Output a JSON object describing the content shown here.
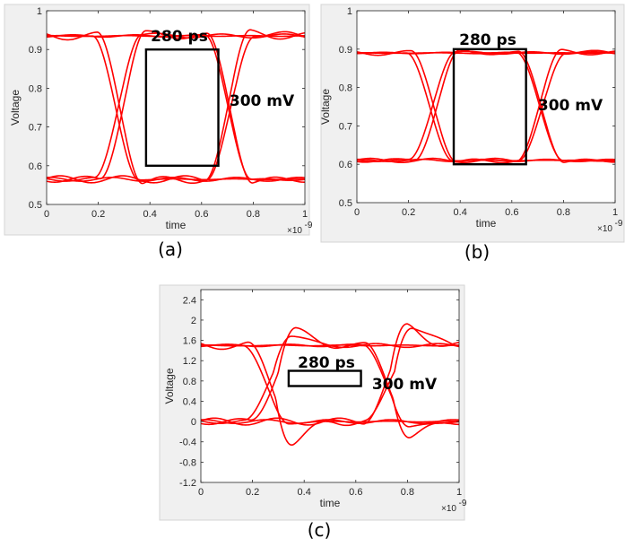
{
  "chart_data": [
    {
      "type": "line",
      "panel_label": "(a)",
      "xlabel": "time",
      "ylabel": "Voltage",
      "x_exponent": "×10",
      "x_exponent_power": "-9",
      "xlim": [
        0,
        1
      ],
      "ylim": [
        0.5,
        1.0
      ],
      "xticks": [
        0,
        0.2,
        0.4,
        0.6,
        0.8,
        1
      ],
      "xtick_labels": [
        "0",
        "0.2",
        "0.4",
        "0.6",
        "0.8",
        "1"
      ],
      "yticks": [
        0.5,
        0.6,
        0.7,
        0.8,
        0.9,
        1.0
      ],
      "ytick_labels": [
        "0.5",
        "0.6",
        "0.7",
        "0.8",
        "0.9",
        "1"
      ],
      "eye": {
        "high": 0.935,
        "low": 0.565,
        "crossings": [
          0.285,
          0.715
        ],
        "ripple": 0.02,
        "overshoot": 0.02
      },
      "color": "#ff0000",
      "eye_box": {
        "x0": 0.385,
        "x1": 0.665,
        "y0": 0.6,
        "y1": 0.9
      },
      "width_label": "280 ps",
      "height_label": "300 mV"
    },
    {
      "type": "line",
      "panel_label": "(b)",
      "xlabel": "time",
      "ylabel": "Voltage",
      "x_exponent": "×10",
      "x_exponent_power": "-9",
      "xlim": [
        0,
        1
      ],
      "ylim": [
        0.5,
        1.0
      ],
      "xticks": [
        0,
        0.2,
        0.4,
        0.6,
        0.8,
        1
      ],
      "xtick_labels": [
        "0",
        "0.2",
        "0.4",
        "0.6",
        "0.8",
        "1"
      ],
      "yticks": [
        0.5,
        0.6,
        0.7,
        0.8,
        0.9,
        1.0
      ],
      "ytick_labels": [
        "0.5",
        "0.6",
        "0.7",
        "0.8",
        "0.9",
        "1"
      ],
      "eye": {
        "high": 0.89,
        "low": 0.61,
        "crossings": [
          0.3,
          0.72
        ],
        "ripple": 0.012,
        "overshoot": 0.012
      },
      "color": "#ff0000",
      "eye_box": {
        "x0": 0.375,
        "x1": 0.655,
        "y0": 0.6,
        "y1": 0.9
      },
      "width_label": "280 ps",
      "height_label": "300 mV"
    },
    {
      "type": "line",
      "panel_label": "(c)",
      "xlabel": "time",
      "ylabel": "Voltage",
      "x_exponent": "×10",
      "x_exponent_power": "-9",
      "xlim": [
        0,
        1
      ],
      "ylim": [
        -1.2,
        2.6
      ],
      "xticks": [
        0,
        0.2,
        0.4,
        0.6,
        0.8,
        1
      ],
      "xtick_labels": [
        "0",
        "0.2",
        "0.4",
        "0.6",
        "0.8",
        "1"
      ],
      "yticks": [
        -1.2,
        -0.8,
        -0.4,
        0,
        0.4,
        0.8,
        1.2,
        1.6,
        2.0,
        2.4
      ],
      "ytick_labels": [
        "-1.2",
        "-0.8",
        "-0.4",
        "0",
        "0.4",
        "0.8",
        "1.2",
        "1.6",
        "2",
        "2.4"
      ],
      "eye": {
        "high": 1.5,
        "low": 0.0,
        "crossings": [
          0.27,
          0.73
        ],
        "ripple": 0.15,
        "overshoot": 1.0
      },
      "color": "#ff0000",
      "eye_box": {
        "x0": 0.34,
        "x1": 0.62,
        "y0": 0.7,
        "y1": 1.0
      },
      "width_label": "280 ps",
      "height_label": "300 mV"
    }
  ]
}
